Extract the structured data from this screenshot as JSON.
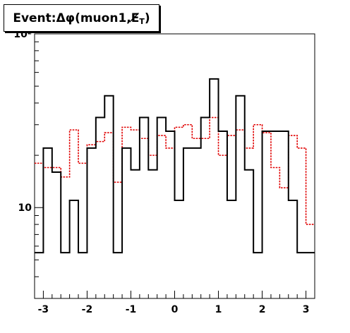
{
  "title": {
    "prefix": "Event: ",
    "delta": "Δ",
    "phi": "φ",
    "mid": "(muon1,",
    "met": "E̸",
    "sub": "T",
    "close": ")"
  },
  "chart_data": {
    "type": "histogram",
    "title": "Event: Δφ(muon1,E̸T)",
    "xlabel": "",
    "ylabel": "",
    "xlim": [
      -3.2,
      3.2
    ],
    "ylim": [
      3,
      100
    ],
    "yscale": "log",
    "grid": false,
    "x_ticks": [
      -3,
      -2,
      -1,
      0,
      1,
      2,
      3
    ],
    "x_tick_labels": [
      "-3",
      "-2",
      "-1",
      "0",
      "1",
      "2",
      "3"
    ],
    "y_ticks": [
      10,
      100
    ],
    "y_tick_labels": [
      "10",
      "10²"
    ],
    "bin_edges": [
      -3.2,
      -3.0,
      -2.8,
      -2.6,
      -2.4,
      -2.2,
      -2.0,
      -1.8,
      -1.6,
      -1.4,
      -1.2,
      -1.0,
      -0.8,
      -0.6,
      -0.4,
      -0.2,
      0.0,
      0.2,
      0.4,
      0.6,
      0.8,
      1.0,
      1.2,
      1.4,
      1.6,
      1.8,
      2.0,
      2.2,
      2.4,
      2.6,
      2.8,
      3.0,
      3.2
    ],
    "series": [
      {
        "style": "solid",
        "color": "#000000",
        "values": [
          5.5,
          22,
          16,
          5.5,
          11,
          5.5,
          22,
          33,
          44,
          5.5,
          22,
          16.5,
          33,
          16.5,
          33,
          27.5,
          11,
          22,
          22,
          33,
          55,
          27.5,
          11,
          44,
          16.5,
          5.5,
          27.5,
          27.5,
          27.5,
          11,
          5.5,
          5.5
        ]
      },
      {
        "style": "dotted",
        "color": "#e00000",
        "values": [
          18,
          17,
          17,
          15,
          28,
          18,
          23,
          24,
          27,
          14,
          29,
          28,
          25,
          20,
          26,
          22,
          29,
          30,
          25,
          25,
          33,
          20,
          26,
          28,
          22,
          30,
          27,
          17,
          13,
          26,
          22,
          8
        ]
      }
    ]
  }
}
